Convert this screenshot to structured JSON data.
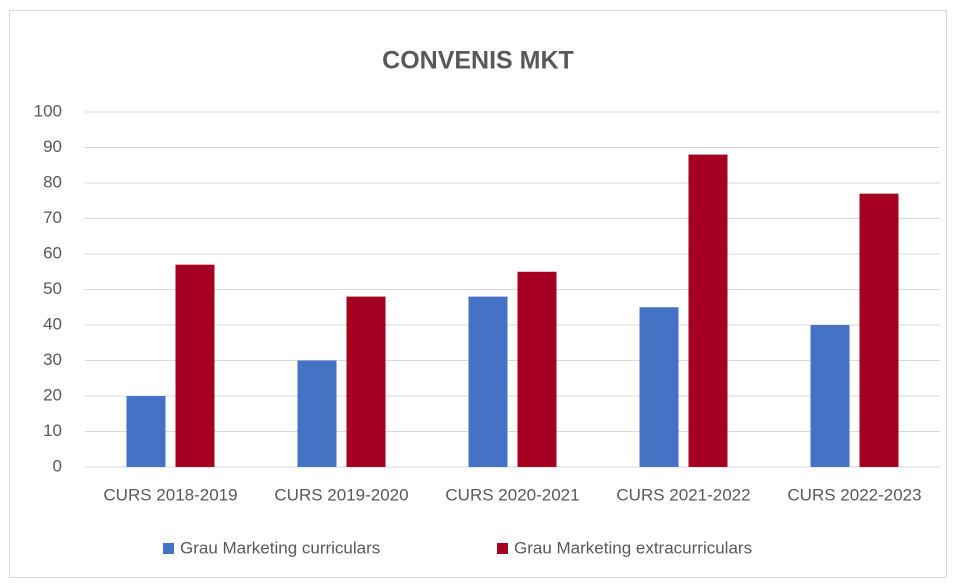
{
  "chart_data": {
    "type": "bar",
    "title": "CONVENIS MKT",
    "categories": [
      "CURS 2018-2019",
      "CURS 2019-2020",
      "CURS 2020-2021",
      "CURS 2021-2022",
      "CURS 2022-2023"
    ],
    "series": [
      {
        "name": "Grau Marketing curriculars",
        "color": "#4472c4",
        "values": [
          20,
          30,
          48,
          45,
          40
        ]
      },
      {
        "name": "Grau Marketing extracurriculars",
        "color": "#a50021",
        "values": [
          57,
          48,
          55,
          88,
          77
        ]
      }
    ],
    "ylim": [
      0,
      100
    ],
    "yticks": [
      0,
      10,
      20,
      30,
      40,
      50,
      60,
      70,
      80,
      90,
      100
    ],
    "grid": true,
    "legend": "bottom"
  }
}
